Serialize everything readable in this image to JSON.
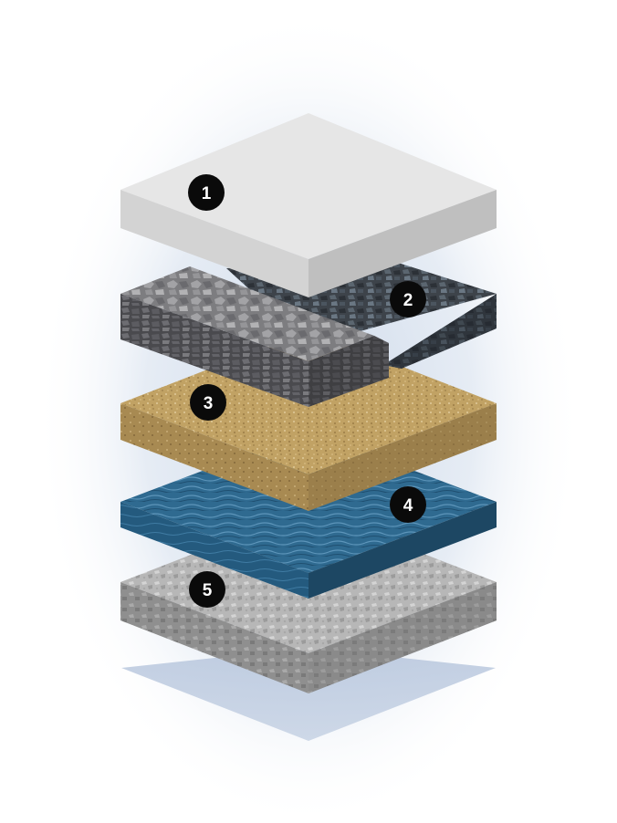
{
  "diagram": {
    "colors": {
      "glow": "#c9d6e8",
      "shadow": "#aebfd9",
      "badge": "#0a0a0a",
      "badge_text": "#ffffff"
    },
    "layers": [
      {
        "number": "1",
        "material": "concrete-slab",
        "top_color": "#e6e6e6",
        "left_color": "#cfcfcf",
        "right_color": "#bdbdbd"
      },
      {
        "number": "2",
        "material": "coarse-crushed-stone",
        "top_color": "#8d8d8f",
        "left_color": "#555558",
        "right_color": "#43474d"
      },
      {
        "number": "3",
        "material": "sand",
        "top_color": "#c4a467",
        "left_color": "#a98a52",
        "right_color": "#8e7443"
      },
      {
        "number": "4",
        "material": "water",
        "top_color": "#2f6a90",
        "left_color": "#255a7c",
        "right_color": "#1c4560"
      },
      {
        "number": "5",
        "material": "compacted-soil",
        "top_color": "#b9b9b9",
        "left_color": "#9e9e9e",
        "right_color": "#858585"
      }
    ]
  }
}
